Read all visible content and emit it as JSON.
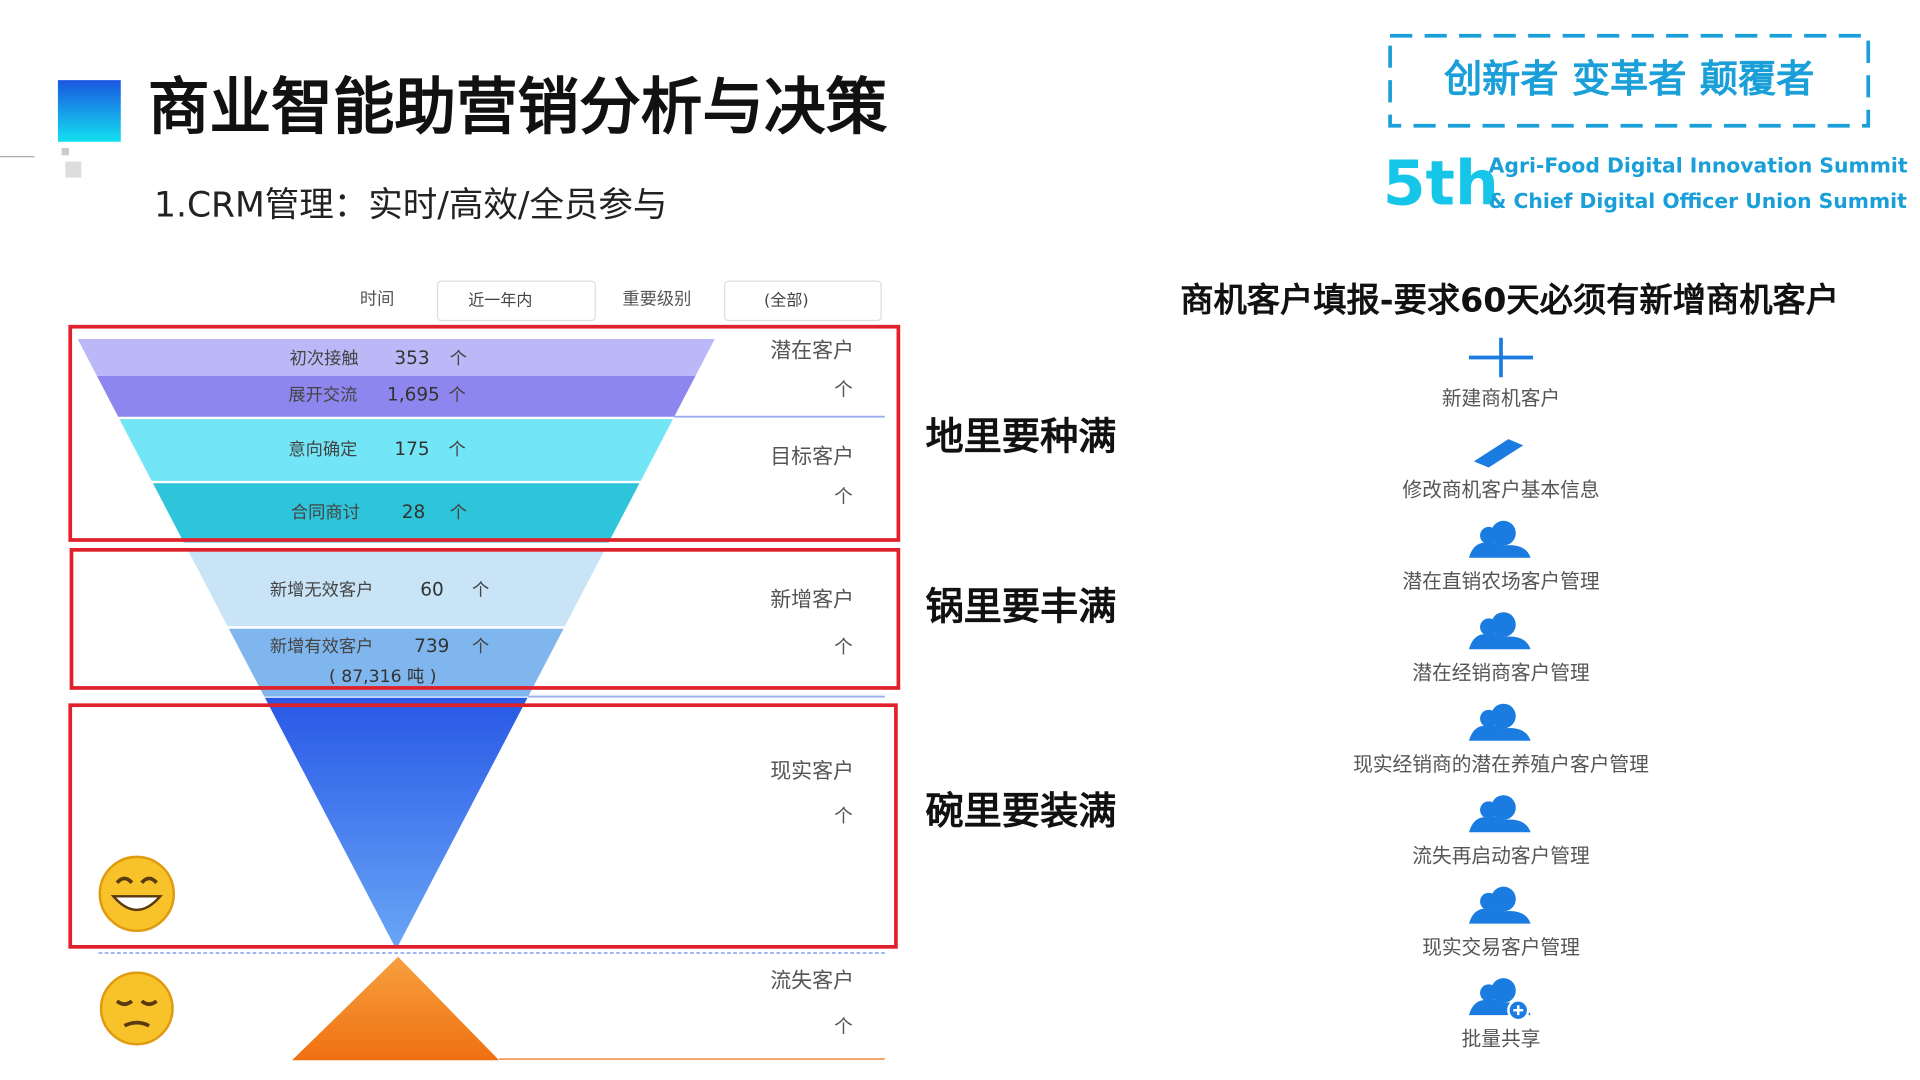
{
  "header": {
    "title": "商业智能助营销分析与决策",
    "subtitle": "1.CRM管理：实时/高效/全员参与"
  },
  "badge": {
    "slogan": "创新者 变革者 颠覆者",
    "edition": "5th",
    "summit_lines": [
      "Agri-Food Digital Innovation Summit",
      "& Chief Digital Officer Union Summit"
    ]
  },
  "filters": [
    {
      "label": "时间",
      "value": "近一年内"
    },
    {
      "label": "重要级别",
      "value": "(全部)"
    }
  ],
  "funnel": {
    "stages": [
      {
        "label": "初次接触",
        "value": "353",
        "unit": "个"
      },
      {
        "label": "展开交流",
        "value": "1,695",
        "unit": "个"
      },
      {
        "label": "意向确定",
        "value": "175",
        "unit": "个"
      },
      {
        "label": "合同商讨",
        "value": "28",
        "unit": "个"
      },
      {
        "label": "新增无效客户",
        "value": "60",
        "unit": "个"
      },
      {
        "label": "新增有效客户",
        "value": "739",
        "unit": "个",
        "note": "( 87,316 吨 )"
      }
    ],
    "groups": [
      {
        "label": "潜在客户",
        "unit": "个"
      },
      {
        "label": "目标客户",
        "unit": "个"
      },
      {
        "label": "新增客户",
        "unit": "个"
      },
      {
        "label": "现实客户",
        "unit": "个"
      },
      {
        "label": "流失客户",
        "unit": "个"
      }
    ]
  },
  "slogans": [
    "地里要种满",
    "锅里要丰满",
    "碗里要装满"
  ],
  "actions": {
    "title": "商机客户填报-要求60天必须有新增商机客户",
    "items": [
      "新建商机客户",
      "修改商机客户基本信息",
      "潜在直销农场客户管理",
      "潜在经销商客户管理",
      "现实经销商的潜在养殖户客户管理",
      "流失再启动客户管理",
      "现实交易客户管理",
      "批量共享"
    ]
  }
}
